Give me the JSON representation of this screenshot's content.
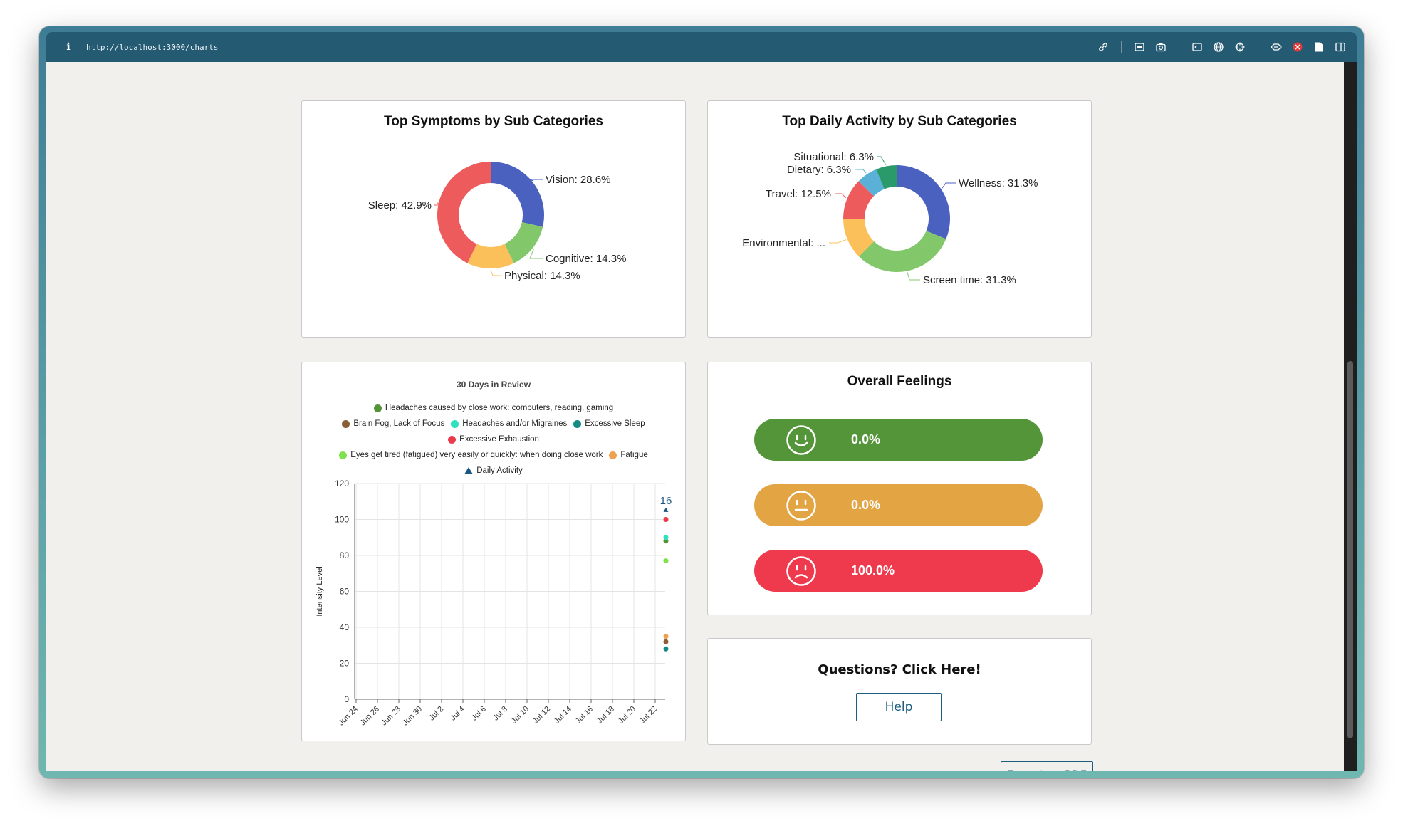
{
  "browser": {
    "url": "http://localhost:3000/charts"
  },
  "symptoms_card": {
    "title": "Top Symptoms by Sub Categories"
  },
  "activity_card": {
    "title": "Top Daily Activity by Sub Categories"
  },
  "review_card": {
    "title": "30 Days in Review",
    "ylabel": "Intensity Level"
  },
  "feelings_card": {
    "title": "Overall Feelings",
    "items": [
      {
        "value": "0.0%",
        "face": "smile-face-icon",
        "color": "#549539"
      },
      {
        "value": "0.0%",
        "face": "neutral-face-icon",
        "color": "#e3a444"
      },
      {
        "value": "100.0%",
        "face": "frown-face-icon",
        "color": "#ee3a4c"
      }
    ]
  },
  "questions_card": {
    "title": "Questions? Click Here!",
    "help_label": "Help"
  },
  "export_label": "Export as PDF",
  "chart_data": [
    {
      "type": "pie",
      "title": "Top Symptoms by Sub Categories",
      "style": "donut",
      "slices": [
        {
          "label": "Vision",
          "value": 28.6,
          "display": "Vision: 28.6%",
          "color": "#4b61c0"
        },
        {
          "label": "Cognitive",
          "value": 14.3,
          "display": "Cognitive: 14.3%",
          "color": "#82c86a"
        },
        {
          "label": "Physical",
          "value": 14.3,
          "display": "Physical: 14.3%",
          "color": "#fcc05a"
        },
        {
          "label": "Sleep",
          "value": 42.9,
          "display": "Sleep: 42.9%",
          "color": "#ee5b5c"
        }
      ]
    },
    {
      "type": "pie",
      "title": "Top Daily Activity by Sub Categories",
      "style": "donut",
      "slices": [
        {
          "label": "Wellness",
          "value": 31.3,
          "display": "Wellness: 31.3%",
          "color": "#4b61c0"
        },
        {
          "label": "Screen time",
          "value": 31.3,
          "display": "Screen time: 31.3%",
          "color": "#82c86a"
        },
        {
          "label": "Environmental",
          "value": 12.5,
          "display": "Environmental: ...",
          "color": "#fcc05a"
        },
        {
          "label": "Travel",
          "value": 12.5,
          "display": "Travel: 12.5%",
          "color": "#ee5b5c"
        },
        {
          "label": "Dietary",
          "value": 6.3,
          "display": "Dietary: 6.3%",
          "color": "#5ab1d8"
        },
        {
          "label": "Situational",
          "value": 6.3,
          "display": "Situational: 6.3%",
          "color": "#2a9a6a"
        }
      ]
    },
    {
      "type": "scatter",
      "title": "30 Days in Review",
      "xlabel": "",
      "ylabel": "Intensity Level",
      "ylim": [
        0,
        120
      ],
      "yticks": [
        0,
        20,
        40,
        60,
        80,
        100,
        120
      ],
      "xticks": [
        "Jun 24",
        "Jun 26",
        "Jun 28",
        "Jun 30",
        "Jul 2",
        "Jul 4",
        "Jul 6",
        "Jul 8",
        "Jul 10",
        "Jul 12",
        "Jul 14",
        "Jul 16",
        "Jul 18",
        "Jul 20",
        "Jul 22"
      ],
      "grid": true,
      "legend_placement": "top",
      "series": [
        {
          "name": "Headaches caused by close work: computers, reading, gaming",
          "color": "#559339",
          "marker": "circle",
          "points": [
            {
              "x": "Jul 23",
              "y": 88
            }
          ]
        },
        {
          "name": "Brain Fog, Lack of Focus",
          "color": "#8a5f36",
          "marker": "circle",
          "points": [
            {
              "x": "Jul 23",
              "y": 32
            }
          ]
        },
        {
          "name": "Headaches and/or Migraines",
          "color": "#2ee0be",
          "marker": "circle",
          "points": [
            {
              "x": "Jul 23",
              "y": 90
            }
          ]
        },
        {
          "name": "Excessive Sleep",
          "color": "#138b84",
          "marker": "circle",
          "points": [
            {
              "x": "Jul 23",
              "y": 28
            }
          ]
        },
        {
          "name": "Excessive Exhaustion",
          "color": "#ec3a4c",
          "marker": "circle",
          "points": [
            {
              "x": "Jul 23",
              "y": 100
            }
          ]
        },
        {
          "name": "Eyes get tired (fatigued) very easily or quickly: when doing close work",
          "color": "#7fe14e",
          "marker": "circle",
          "points": [
            {
              "x": "Jul 23",
              "y": 77
            }
          ]
        },
        {
          "name": "Fatigue",
          "color": "#eea14e",
          "marker": "circle",
          "points": [
            {
              "x": "Jul 23",
              "y": 35
            }
          ]
        },
        {
          "name": "Daily Activity",
          "color": "#1a5680",
          "marker": "triangle",
          "points": [
            {
              "x": "Jul 23",
              "y": 105,
              "label": "16"
            }
          ]
        }
      ]
    }
  ]
}
